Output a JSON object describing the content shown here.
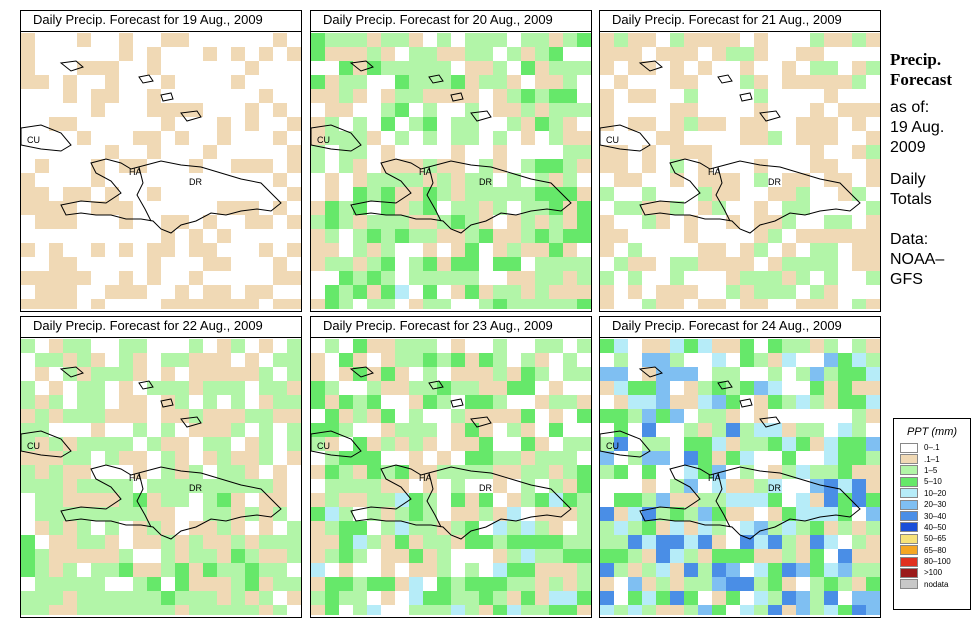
{
  "panels": [
    {
      "title": "Daily Precip. Forecast for  19 Aug., 2009",
      "seed": 11,
      "intensity": 0.35
    },
    {
      "title": "Daily Precip. Forecast for  20 Aug., 2009",
      "seed": 23,
      "intensity": 0.85
    },
    {
      "title": "Daily Precip. Forecast for  21 Aug., 2009",
      "seed": 37,
      "intensity": 0.5
    },
    {
      "title": "Daily Precip. Forecast for  22 Aug., 2009",
      "seed": 41,
      "intensity": 0.75
    },
    {
      "title": "Daily Precip. Forecast for  23 Aug., 2009",
      "seed": 53,
      "intensity": 0.9
    },
    {
      "title": "Daily Precip. Forecast for  24 Aug., 2009",
      "seed": 67,
      "intensity": 1.3
    }
  ],
  "region_labels": {
    "cu": "CU",
    "ha": "HA",
    "dr": "DR"
  },
  "side": {
    "title1": "Precip.",
    "title2": "Forecast",
    "asof": "as of:",
    "date1": "19 Aug.",
    "date2": "2009",
    "daily": "Daily",
    "totals": "Totals",
    "data": "Data:",
    "noaa": "NOAA–",
    "gfs": "GFS"
  },
  "legend": {
    "title": "PPT (mm)",
    "entries": [
      {
        "label": "0–.1",
        "color": "#ffffff"
      },
      {
        "label": ".1–1",
        "color": "#f0d9b5"
      },
      {
        "label": "1–5",
        "color": "#b2f5a8"
      },
      {
        "label": "5–10",
        "color": "#66e86a"
      },
      {
        "label": "10–20",
        "color": "#b6ecf8"
      },
      {
        "label": "20–30",
        "color": "#7fbff2"
      },
      {
        "label": "30–40",
        "color": "#4a8ee6"
      },
      {
        "label": "40–50",
        "color": "#1a4fd8"
      },
      {
        "label": "50–65",
        "color": "#f6e27a"
      },
      {
        "label": "65–80",
        "color": "#f5a623"
      },
      {
        "label": "80–100",
        "color": "#e0301e"
      },
      {
        "label": ">100",
        "color": "#9a1a1a"
      },
      {
        "label": "nodata",
        "color": "#c8c8c8"
      }
    ]
  }
}
